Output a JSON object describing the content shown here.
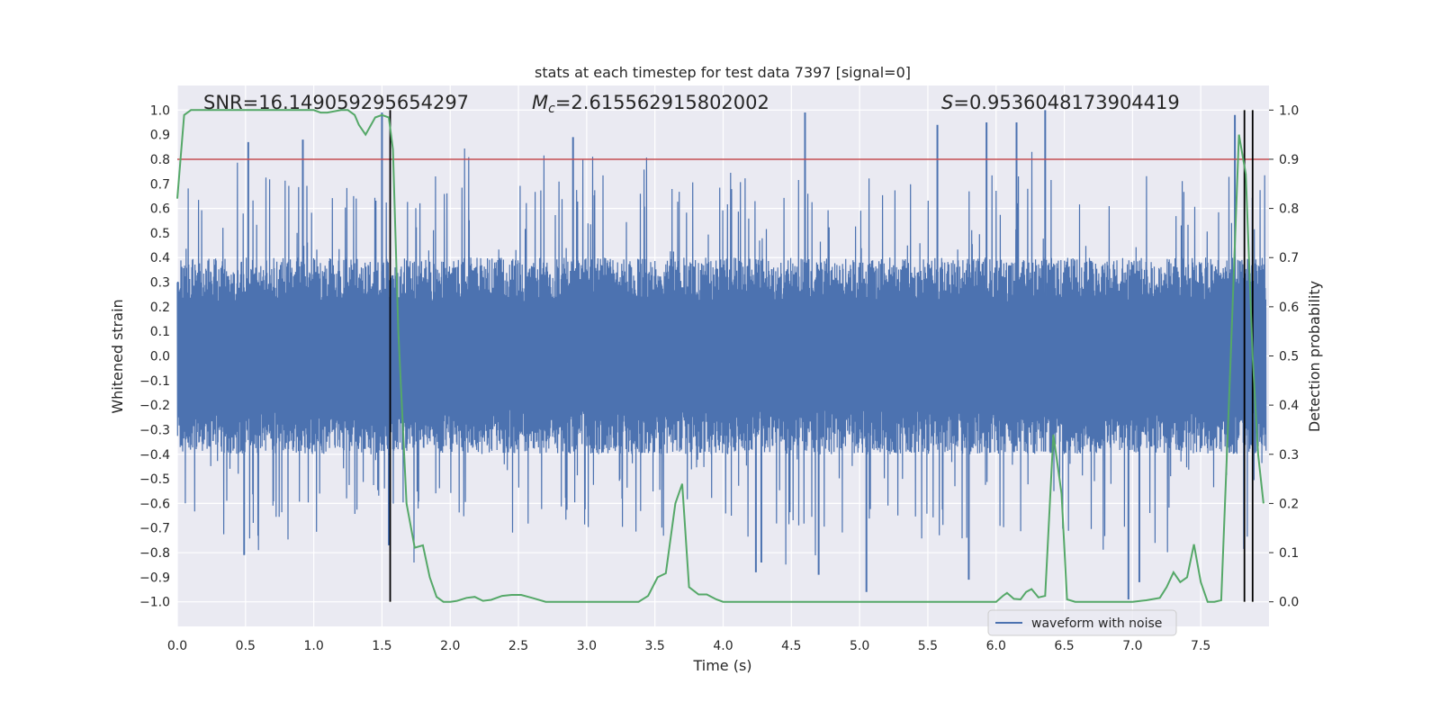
{
  "chart_data": {
    "type": "line",
    "title": "stats at each timestep for test data 7397 [signal=0]",
    "xlabel": "Time (s)",
    "ylabel_left": "Whitened strain",
    "ylabel_right": "Detection probability",
    "xlim": [
      0.0,
      8.0
    ],
    "ylim_left": [
      -1.1,
      1.1
    ],
    "ylim_right": [
      -0.05,
      1.05
    ],
    "x_ticks": [
      "0.0",
      "0.5",
      "1.0",
      "1.5",
      "2.0",
      "2.5",
      "3.0",
      "3.5",
      "4.0",
      "4.5",
      "5.0",
      "5.5",
      "6.0",
      "6.5",
      "7.0",
      "7.5"
    ],
    "y_ticks_left": [
      "1.0",
      "0.9",
      "0.8",
      "0.7",
      "0.6",
      "0.5",
      "0.4",
      "0.3",
      "0.2",
      "0.1",
      "0.0",
      "−0.1",
      "−0.2",
      "−0.3",
      "−0.4",
      "−0.5",
      "−0.6",
      "−0.7",
      "−0.8",
      "−0.9",
      "−1.0"
    ],
    "y_ticks_right": [
      "1.0",
      "0.9",
      "0.8",
      "0.7",
      "0.6",
      "0.5",
      "0.4",
      "0.3",
      "0.2",
      "0.1",
      "0.0"
    ],
    "annotations": {
      "snr": "SNR=16.149059295654297",
      "mc_symbol": "M",
      "mc_sub": "c",
      "mc_value": "=2.615562915802002",
      "s_symbol": "S",
      "s_value": "=0.9536048173904419"
    },
    "threshold": {
      "value": 0.8,
      "axis": "left",
      "color": "#c44e52"
    },
    "vertical_lines": [
      1.56,
      7.82,
      7.88
    ],
    "series": [
      {
        "name": "waveform with noise",
        "axis": "left",
        "color": "#4c72b0",
        "kind": "noise",
        "core_amplitude": 0.4,
        "notable_peaks": [
          {
            "t": 0.52,
            "v": 0.87
          },
          {
            "t": 0.92,
            "v": 0.88
          },
          {
            "t": 1.5,
            "v": 0.99
          },
          {
            "t": 2.9,
            "v": 0.89
          },
          {
            "t": 4.6,
            "v": 0.99
          },
          {
            "t": 5.57,
            "v": 0.94
          },
          {
            "t": 5.93,
            "v": 0.95
          },
          {
            "t": 6.15,
            "v": 0.95
          },
          {
            "t": 6.36,
            "v": 1.0
          },
          {
            "t": 7.75,
            "v": 0.98
          },
          {
            "t": 0.49,
            "v": -0.81
          },
          {
            "t": 1.55,
            "v": -0.77
          },
          {
            "t": 4.24,
            "v": -0.88
          },
          {
            "t": 4.28,
            "v": -0.84
          },
          {
            "t": 4.7,
            "v": -0.89
          },
          {
            "t": 5.05,
            "v": -0.96
          },
          {
            "t": 5.8,
            "v": -0.91
          },
          {
            "t": 6.97,
            "v": -0.99
          },
          {
            "t": 7.05,
            "v": -0.92
          }
        ]
      },
      {
        "name": "detection probability",
        "axis": "right",
        "color": "#55a868",
        "x": [
          0.0,
          0.05,
          0.1,
          0.2,
          0.3,
          0.4,
          0.5,
          0.6,
          0.7,
          0.8,
          0.9,
          1.0,
          1.05,
          1.1,
          1.2,
          1.25,
          1.3,
          1.33,
          1.38,
          1.45,
          1.5,
          1.55,
          1.58,
          1.62,
          1.68,
          1.74,
          1.8,
          1.85,
          1.9,
          1.95,
          2.0,
          2.05,
          2.12,
          2.18,
          2.24,
          2.3,
          2.38,
          2.45,
          2.52,
          2.6,
          2.7,
          2.85,
          3.0,
          3.1,
          3.2,
          3.3,
          3.38,
          3.45,
          3.52,
          3.58,
          3.65,
          3.7,
          3.75,
          3.82,
          3.88,
          3.95,
          4.0,
          4.1,
          4.2,
          4.3,
          4.5,
          4.7,
          4.9,
          5.0,
          5.1,
          5.3,
          5.5,
          5.7,
          5.8,
          5.9,
          6.0,
          6.05,
          6.08,
          6.13,
          6.18,
          6.22,
          6.26,
          6.31,
          6.36,
          6.42,
          6.48,
          6.52,
          6.58,
          6.62,
          6.65,
          6.7,
          6.8,
          6.9,
          7.0,
          7.1,
          7.2,
          7.25,
          7.3,
          7.35,
          7.4,
          7.45,
          7.5,
          7.55,
          7.6,
          7.65,
          7.72,
          7.78,
          7.83,
          7.88,
          7.92,
          7.96
        ],
        "values": [
          0.82,
          0.99,
          1.0,
          1.0,
          1.0,
          1.0,
          1.0,
          1.0,
          1.0,
          1.0,
          1.0,
          1.0,
          0.995,
          0.995,
          1.0,
          1.0,
          0.99,
          0.97,
          0.95,
          0.985,
          0.99,
          0.985,
          0.92,
          0.55,
          0.2,
          0.11,
          0.115,
          0.05,
          0.01,
          0.0,
          0.0,
          0.002,
          0.008,
          0.01,
          0.002,
          0.004,
          0.012,
          0.014,
          0.014,
          0.008,
          0.0,
          0.0,
          0.0,
          0.0,
          0.0,
          0.0,
          0.0,
          0.012,
          0.05,
          0.058,
          0.2,
          0.24,
          0.03,
          0.015,
          0.015,
          0.005,
          0.0,
          0.0,
          0.0,
          0.0,
          0.0,
          0.0,
          0.0,
          0.0,
          0.0,
          0.0,
          0.0,
          0.0,
          0.0,
          0.0,
          0.0,
          0.012,
          0.018,
          0.006,
          0.005,
          0.02,
          0.026,
          0.009,
          0.012,
          0.34,
          0.22,
          0.005,
          0.0,
          0.0,
          0.0,
          0.0,
          0.0,
          0.0,
          0.0,
          0.003,
          0.008,
          0.03,
          0.06,
          0.04,
          0.05,
          0.117,
          0.04,
          0.0,
          0.0,
          0.003,
          0.5,
          0.95,
          0.87,
          0.5,
          0.3,
          0.2
        ]
      }
    ],
    "legend": {
      "label": "waveform with noise",
      "placement": "lower-right"
    }
  }
}
